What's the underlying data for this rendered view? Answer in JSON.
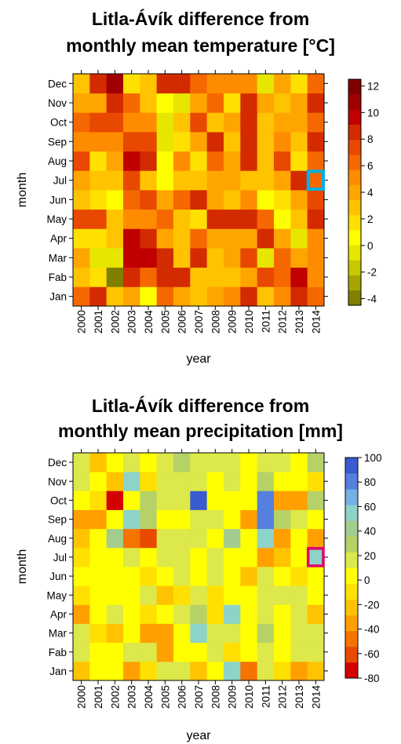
{
  "colors": {
    "temperature_scale": [
      "#7f7f00",
      "#a5a500",
      "#c8c800",
      "#e6e600",
      "#ffff00",
      "#ffe000",
      "#ffc300",
      "#ffa500",
      "#ff8c00",
      "#f56800",
      "#e84800",
      "#d42a00",
      "#c00000",
      "#a00000",
      "#800000"
    ],
    "precipitation_scale": [
      "#d40000",
      "#e84a00",
      "#f67300",
      "#ffa000",
      "#ffc300",
      "#ffe000",
      "#ffff00",
      "#dde84a",
      "#b6d266",
      "#a3cc8e",
      "#8dd3c7",
      "#74b0e6",
      "#5580dd",
      "#3a5bd0"
    ],
    "highlight_temperature": "#00b0e0",
    "highlight_precipitation": "#e0006c",
    "border": "#000000",
    "text": "#000000"
  },
  "chart_data": [
    {
      "type": "heatmap",
      "title": "Litla-Ávík difference from monthly mean temperature [°C]",
      "title_lines": [
        "Litla-Ávík difference from",
        "monthly mean temperature [°C]"
      ],
      "xlabel": "year",
      "ylabel": "month",
      "x": [
        "2000",
        "2001",
        "2002",
        "2003",
        "2004",
        "2005",
        "2006",
        "2007",
        "2008",
        "2009",
        "2010",
        "2011",
        "2012",
        "2013",
        "2014"
      ],
      "y": [
        "Jan",
        "Fab",
        "Mar",
        "Apr",
        "May",
        "Jun",
        "Jul",
        "Aug",
        "Sep",
        "Oct",
        "Nov",
        "Dec"
      ],
      "values": [
        [
          6,
          8,
          3,
          4,
          1,
          6,
          4,
          3,
          4,
          5,
          8,
          3,
          5,
          8,
          6
        ],
        [
          3,
          2,
          -4,
          8,
          6,
          8,
          9,
          3,
          3,
          3,
          4,
          7,
          6,
          10,
          5
        ],
        [
          4,
          0,
          -1,
          10,
          10,
          8,
          3,
          8,
          3,
          4,
          7,
          0,
          6,
          4,
          5
        ],
        [
          2,
          2,
          3,
          10,
          8,
          4,
          3,
          6,
          4,
          4,
          4,
          8,
          4,
          0,
          5
        ],
        [
          7,
          7,
          3,
          5,
          5,
          6,
          3,
          2,
          8,
          8,
          8,
          6,
          1,
          3,
          8
        ],
        [
          3,
          2,
          1,
          6,
          7,
          4,
          6,
          8,
          4,
          3,
          5,
          1,
          2,
          4,
          7
        ],
        [
          4,
          3,
          3,
          7,
          3,
          1,
          3,
          3,
          4,
          4,
          3,
          3,
          4,
          8,
          6
        ],
        [
          7,
          2,
          4,
          10,
          9,
          1,
          5,
          2,
          6,
          4,
          8,
          3,
          7,
          2,
          6
        ],
        [
          5,
          5,
          5,
          7,
          7,
          0,
          2,
          4,
          8,
          3,
          8,
          3,
          5,
          3,
          8
        ],
        [
          6,
          7,
          7,
          5,
          5,
          0,
          3,
          7,
          3,
          4,
          8,
          3,
          4,
          4,
          6
        ],
        [
          4,
          4,
          8,
          6,
          3,
          1,
          0,
          4,
          6,
          2,
          8,
          4,
          3,
          4,
          9
        ],
        [
          3,
          9,
          11,
          2,
          3,
          8,
          9,
          6,
          5,
          5,
          5,
          0,
          4,
          2,
          6
        ]
      ],
      "colorbar": {
        "min": -4.5,
        "max": 12.5,
        "ticks": [
          12,
          10,
          8,
          6,
          4,
          2,
          0,
          -2,
          -4
        ]
      },
      "highlight": {
        "year": "2014",
        "month": "Jul"
      }
    },
    {
      "type": "heatmap",
      "title": "Litla-Ávík difference from monthly mean precipitation [mm]",
      "title_lines": [
        "Litla-Ávík difference from",
        "monthly mean precipitation [mm]"
      ],
      "xlabel": "year",
      "ylabel": "month",
      "x": [
        "2000",
        "2001",
        "2002",
        "2003",
        "2004",
        "2005",
        "2006",
        "2007",
        "2008",
        "2009",
        "2010",
        "2011",
        "2012",
        "2013",
        "2014"
      ],
      "y": [
        "Jan",
        "Fab",
        "Mar",
        "Apr",
        "May",
        "Jun",
        "Jul",
        "Aug",
        "Sep",
        "Oct",
        "Nov",
        "Dec"
      ],
      "values": [
        [
          -20,
          0,
          0,
          -30,
          -10,
          10,
          10,
          -20,
          0,
          50,
          -50,
          10,
          -10,
          -30,
          -20
        ],
        [
          10,
          0,
          0,
          20,
          20,
          -30,
          0,
          0,
          10,
          -10,
          0,
          20,
          0,
          10,
          20
        ],
        [
          20,
          -10,
          -20,
          0,
          -30,
          -30,
          0,
          50,
          20,
          10,
          0,
          30,
          0,
          10,
          20
        ],
        [
          -30,
          0,
          10,
          0,
          -10,
          0,
          10,
          30,
          -10,
          60,
          0,
          10,
          0,
          10,
          -20
        ],
        [
          -10,
          0,
          0,
          0,
          10,
          -20,
          -10,
          10,
          -10,
          0,
          0,
          20,
          10,
          20,
          0
        ],
        [
          0,
          0,
          0,
          0,
          -10,
          0,
          20,
          0,
          20,
          0,
          -20,
          20,
          0,
          -10,
          0
        ],
        [
          -10,
          0,
          0,
          20,
          0,
          10,
          20,
          0,
          10,
          0,
          0,
          -40,
          -20,
          0,
          60
        ],
        [
          -20,
          0,
          40,
          -50,
          -60,
          20,
          20,
          10,
          0,
          40,
          0,
          60,
          -30,
          0,
          -40
        ],
        [
          -30,
          -40,
          0,
          50,
          30,
          0,
          0,
          20,
          20,
          0,
          -40,
          80,
          30,
          10,
          0
        ],
        [
          0,
          -10,
          -70,
          0,
          30,
          20,
          10,
          90,
          0,
          0,
          0,
          80,
          -40,
          -30,
          30
        ],
        [
          20,
          0,
          -20,
          50,
          -10,
          10,
          20,
          20,
          0,
          20,
          0,
          30,
          0,
          0,
          -10
        ],
        [
          10,
          -20,
          0,
          20,
          0,
          10,
          30,
          10,
          10,
          20,
          0,
          10,
          10,
          0,
          30
        ]
      ],
      "colorbar": {
        "min": -80,
        "max": 100,
        "ticks": [
          100,
          80,
          60,
          40,
          20,
          0,
          -20,
          -40,
          -60,
          -80
        ]
      },
      "highlight": {
        "year": "2014",
        "month": "Jul"
      }
    }
  ]
}
